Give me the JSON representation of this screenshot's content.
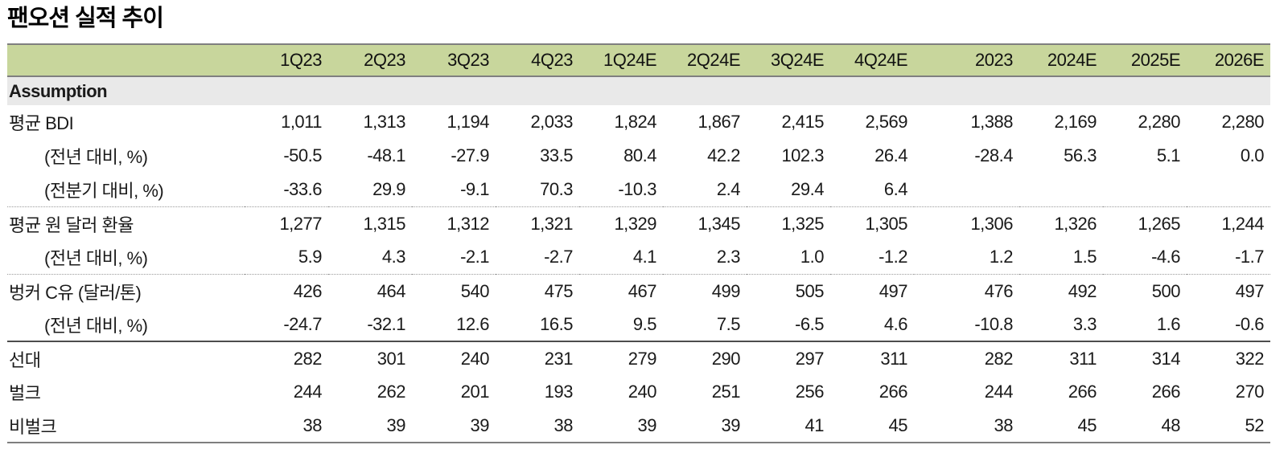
{
  "title": "팬오션 실적 추이",
  "table": {
    "section_header": "Assumption",
    "columns": [
      "1Q23",
      "2Q23",
      "3Q23",
      "4Q23",
      "1Q24E",
      "2Q24E",
      "3Q24E",
      "4Q24E",
      "2023",
      "2024E",
      "2025E",
      "2026E"
    ],
    "rows": [
      {
        "label": "평균 BDI",
        "indent": false,
        "separator": "none",
        "values": [
          "1,011",
          "1,313",
          "1,194",
          "2,033",
          "1,824",
          "1,867",
          "2,415",
          "2,569",
          "1,388",
          "2,169",
          "2,280",
          "2,280"
        ]
      },
      {
        "label": "(전년 대비, %)",
        "indent": true,
        "separator": "none",
        "values": [
          "-50.5",
          "-48.1",
          "-27.9",
          "33.5",
          "80.4",
          "42.2",
          "102.3",
          "26.4",
          "-28.4",
          "56.3",
          "5.1",
          "0.0"
        ]
      },
      {
        "label": "(전분기 대비, %)",
        "indent": true,
        "separator": "dotted",
        "values": [
          "-33.6",
          "29.9",
          "-9.1",
          "70.3",
          "-10.3",
          "2.4",
          "29.4",
          "6.4",
          "",
          "",
          "",
          ""
        ]
      },
      {
        "label": "평균 원 달러 환율",
        "indent": false,
        "separator": "none",
        "values": [
          "1,277",
          "1,315",
          "1,312",
          "1,321",
          "1,329",
          "1,345",
          "1,325",
          "1,305",
          "1,306",
          "1,326",
          "1,265",
          "1,244"
        ]
      },
      {
        "label": "(전년 대비, %)",
        "indent": true,
        "separator": "dotted",
        "values": [
          "5.9",
          "4.3",
          "-2.1",
          "-2.7",
          "4.1",
          "2.3",
          "1.0",
          "-1.2",
          "1.2",
          "1.5",
          "-4.6",
          "-1.7"
        ]
      },
      {
        "label": "벙커 C유 (달러/톤)",
        "indent": false,
        "separator": "none",
        "values": [
          "426",
          "464",
          "540",
          "475",
          "467",
          "499",
          "505",
          "497",
          "476",
          "492",
          "500",
          "497"
        ]
      },
      {
        "label": "(전년 대비, %)",
        "indent": true,
        "separator": "solid",
        "values": [
          "-24.7",
          "-32.1",
          "12.6",
          "16.5",
          "9.5",
          "7.5",
          "-6.5",
          "4.6",
          "-10.8",
          "3.3",
          "1.6",
          "-0.6"
        ]
      },
      {
        "label": "선대",
        "indent": false,
        "separator": "none",
        "values": [
          "282",
          "301",
          "240",
          "231",
          "279",
          "290",
          "297",
          "311",
          "282",
          "311",
          "314",
          "322"
        ]
      },
      {
        "label": "벌크",
        "indent": false,
        "separator": "none",
        "values": [
          "244",
          "262",
          "201",
          "193",
          "240",
          "251",
          "256",
          "266",
          "244",
          "266",
          "266",
          "270"
        ]
      },
      {
        "label": "비벌크",
        "indent": false,
        "separator": "none",
        "values": [
          "38",
          "39",
          "39",
          "38",
          "39",
          "39",
          "41",
          "45",
          "38",
          "45",
          "48",
          "52"
        ]
      }
    ]
  },
  "colors": {
    "header_bg": "#c8d69c",
    "section_bg": "#e9e9e9",
    "line_gray": "#7f7f7f",
    "line_dark": "#4d4d4d",
    "text": "#111111"
  }
}
